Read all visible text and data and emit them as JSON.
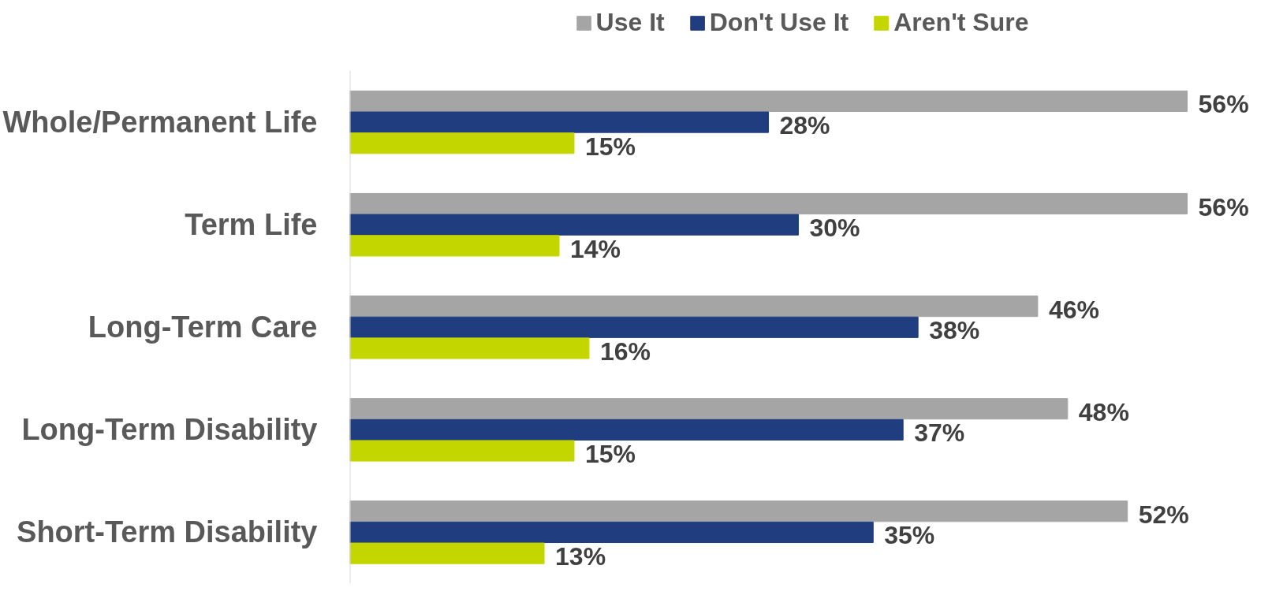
{
  "chart_data": {
    "type": "bar",
    "orientation": "horizontal",
    "categories": [
      "Whole/Permanent Life",
      "Term Life",
      "Long-Term Care",
      "Long-Term Disability",
      "Short-Term Disability"
    ],
    "series": [
      {
        "name": "Use It",
        "color": "#a5a5a5",
        "values": [
          56,
          56,
          46,
          48,
          52
        ],
        "value_labels": [
          "56%",
          "56%",
          "46%",
          "48%",
          "52%"
        ]
      },
      {
        "name": "Don't Use It",
        "color": "#1f3d7f",
        "values": [
          28,
          30,
          38,
          37,
          35
        ],
        "value_labels": [
          "28%",
          "30%",
          "38%",
          "37%",
          "35%"
        ]
      },
      {
        "name": "Aren't Sure",
        "color": "#c4d600",
        "values": [
          15,
          14,
          16,
          15,
          13
        ],
        "value_labels": [
          "15%",
          "14%",
          "16%",
          "15%",
          "13%"
        ]
      }
    ],
    "tick_labels": "y",
    "grid": false,
    "legend": "top"
  }
}
